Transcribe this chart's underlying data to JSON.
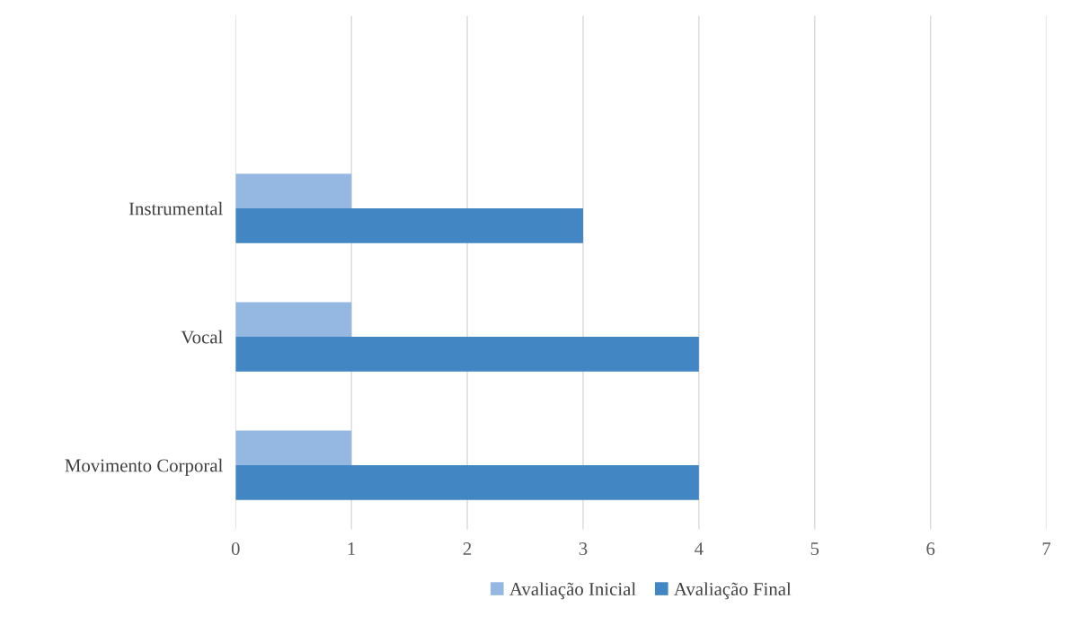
{
  "chart_data": {
    "type": "bar",
    "orientation": "horizontal",
    "categories": [
      null,
      "Instrumental",
      "Vocal",
      "Movimento Corporal"
    ],
    "series": [
      {
        "name": "Avaliação Inicial",
        "color": "#95b8e3",
        "values": [
          null,
          1,
          1,
          1
        ]
      },
      {
        "name": "Avaliação Final",
        "color": "#4286c4",
        "values": [
          null,
          3,
          4,
          4
        ]
      }
    ],
    "xlim": [
      0,
      7
    ],
    "xticks": [
      0,
      1,
      2,
      3,
      4,
      5,
      6,
      7
    ],
    "grid": "x",
    "legend": "bottom"
  }
}
